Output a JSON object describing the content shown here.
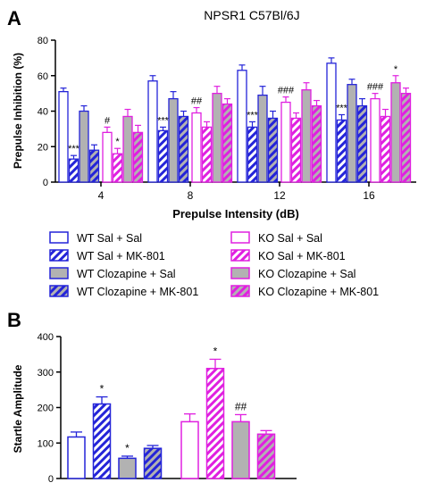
{
  "panel_a_letter": "A",
  "panel_b_letter": "B",
  "colors": {
    "blue": "#2424d8",
    "magenta": "#e020e0",
    "gray": "#b2b2b2",
    "axis": "#000000"
  },
  "chart_data": [
    {
      "type": "bar",
      "title": "NPSR1 C57Bl/6J",
      "xlabel": "Prepulse Intensity (dB)",
      "ylabel": "Prepulse Inhibition (%)",
      "ylim": [
        0,
        80
      ],
      "yticks": [
        0,
        20,
        40,
        60,
        80
      ],
      "categories": [
        "4",
        "8",
        "12",
        "16"
      ],
      "grid": false,
      "legend_position": "bottom",
      "series": [
        {
          "name": "WT Sal + Sal",
          "style": "open",
          "color": "blue",
          "values": [
            51,
            57,
            63,
            67
          ],
          "errors": [
            2,
            3,
            3,
            3
          ],
          "annotations": [
            "",
            "",
            "",
            ""
          ]
        },
        {
          "name": "WT Sal + MK-801",
          "style": "hatch",
          "color": "blue",
          "values": [
            13,
            29,
            31,
            35
          ],
          "errors": [
            2,
            2,
            3,
            3
          ],
          "annotations": [
            "***",
            "***",
            "***",
            "***"
          ]
        },
        {
          "name": "WT Clozapine + Sal",
          "style": "gray",
          "color": "blue",
          "values": [
            40,
            47,
            49,
            55
          ],
          "errors": [
            3,
            4,
            5,
            3
          ],
          "annotations": [
            "",
            "",
            "",
            ""
          ]
        },
        {
          "name": "WT Clozapine + MK-801",
          "style": "gray-hatch",
          "color": "blue",
          "values": [
            18,
            37,
            36,
            43
          ],
          "errors": [
            3,
            3,
            4,
            4
          ],
          "annotations": [
            "",
            "",
            "",
            ""
          ]
        },
        {
          "name": "KO Sal + Sal",
          "style": "open",
          "color": "magenta",
          "values": [
            28,
            39,
            45,
            47
          ],
          "errors": [
            3,
            3,
            3,
            3
          ],
          "annotations": [
            "#",
            "##",
            "###",
            "###"
          ]
        },
        {
          "name": "KO Sal + MK-801",
          "style": "hatch",
          "color": "magenta",
          "values": [
            16,
            31,
            36,
            37
          ],
          "errors": [
            3,
            3,
            3,
            4
          ],
          "annotations": [
            "*",
            "",
            "",
            ""
          ]
        },
        {
          "name": "KO Clozapine + Sal",
          "style": "gray",
          "color": "magenta",
          "values": [
            37,
            50,
            52,
            56
          ],
          "errors": [
            4,
            4,
            4,
            4
          ],
          "annotations": [
            "",
            "",
            "",
            "*"
          ]
        },
        {
          "name": "KO Clozapine + MK-801",
          "style": "gray-hatch",
          "color": "magenta",
          "values": [
            28,
            44,
            43,
            50
          ],
          "errors": [
            4,
            3,
            3,
            3
          ],
          "annotations": [
            "",
            "",
            "",
            ""
          ]
        }
      ]
    },
    {
      "type": "bar",
      "title": "",
      "xlabel": "",
      "ylabel": "Startle Amplitude",
      "ylim": [
        0,
        400
      ],
      "yticks": [
        0,
        100,
        200,
        300,
        400
      ],
      "grid": false,
      "bars": [
        {
          "name": "WT Sal + Sal",
          "style": "open",
          "color": "blue",
          "value": 117,
          "error": 14,
          "annotation": ""
        },
        {
          "name": "WT Sal + MK-801",
          "style": "hatch",
          "color": "blue",
          "value": 210,
          "error": 20,
          "annotation": "*"
        },
        {
          "name": "WT Clozapine + Sal",
          "style": "gray",
          "color": "blue",
          "value": 57,
          "error": 6,
          "annotation": "*"
        },
        {
          "name": "WT Clozapine + MK-801",
          "style": "gray-hatch",
          "color": "blue",
          "value": 85,
          "error": 8,
          "annotation": ""
        },
        {
          "name": "KO Sal + Sal",
          "style": "open",
          "color": "magenta",
          "value": 160,
          "error": 22,
          "annotation": ""
        },
        {
          "name": "KO Sal + MK-801",
          "style": "hatch",
          "color": "magenta",
          "value": 310,
          "error": 26,
          "annotation": "*"
        },
        {
          "name": "KO Clozapine + Sal",
          "style": "gray",
          "color": "magenta",
          "value": 160,
          "error": 20,
          "annotation": "##"
        },
        {
          "name": "KO Clozapine + MK-801",
          "style": "gray-hatch",
          "color": "magenta",
          "value": 125,
          "error": 10,
          "annotation": ""
        }
      ]
    }
  ]
}
